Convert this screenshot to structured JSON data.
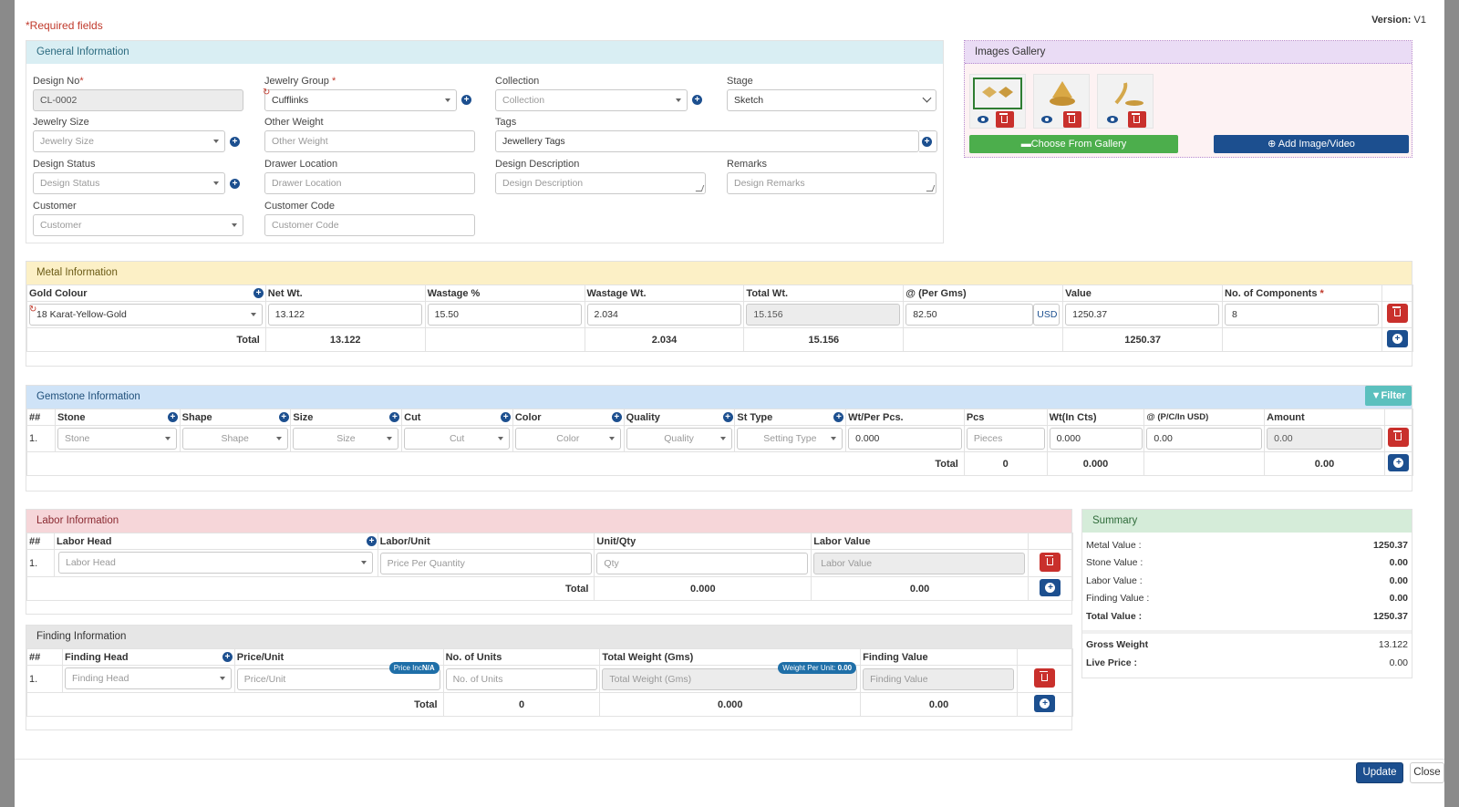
{
  "header": {
    "required_note": "*Required fields",
    "version_label": "Version:",
    "version_value": "V1"
  },
  "general": {
    "title": "General Information",
    "design_no_label": "Design No",
    "design_no_value": "CL-0002",
    "jewelry_group_label": "Jewelry Group",
    "jewelry_group_value": "Cufflinks",
    "collection_label": "Collection",
    "collection_placeholder": "Collection",
    "stage_label": "Stage",
    "stage_value": "Sketch",
    "jewelry_size_label": "Jewelry Size",
    "jewelry_size_placeholder": "Jewelry Size",
    "other_weight_label": "Other Weight",
    "other_weight_placeholder": "Other Weight",
    "tags_label": "Tags",
    "tags_value": "Jewellery Tags",
    "design_status_label": "Design Status",
    "design_status_placeholder": "Design Status",
    "drawer_location_label": "Drawer Location",
    "drawer_location_placeholder": "Drawer Location",
    "design_description_label": "Design Description",
    "design_description_placeholder": "Design Description",
    "remarks_label": "Remarks",
    "remarks_placeholder": "Design Remarks",
    "customer_label": "Customer",
    "customer_placeholder": "Customer",
    "customer_code_label": "Customer Code",
    "customer_code_placeholder": "Customer Code"
  },
  "gallery": {
    "title": "Images Gallery",
    "choose_label": "Choose From Gallery",
    "add_label": "Add Image/Video"
  },
  "metal": {
    "title": "Metal Information",
    "headers": [
      "Gold Colour",
      "Net Wt.",
      "Wastage %",
      "Wastage Wt.",
      "Total Wt.",
      "@ (Per Gms)",
      "Value",
      "No. of Components"
    ],
    "row": {
      "gold_colour": "18 Karat-Yellow-Gold",
      "net_wt": "13.122",
      "wastage_pct": "15.50",
      "wastage_wt": "2.034",
      "total_wt": "15.156",
      "per_gms": "82.50",
      "currency": "USD",
      "value": "1250.37",
      "components": "8"
    },
    "total": {
      "label": "Total",
      "net_wt": "13.122",
      "wastage_wt": "2.034",
      "total_wt": "15.156",
      "value": "1250.37"
    }
  },
  "gemstone": {
    "title": "Gemstone Information",
    "filter_label": "Filter",
    "headers": [
      "##",
      "Stone",
      "Shape",
      "Size",
      "Cut",
      "Color",
      "Quality",
      "St Type",
      "Wt/Per Pcs.",
      "Pcs",
      "Wt(In Cts)",
      "@ (P/C/In USD)",
      "Amount"
    ],
    "row": {
      "num": "1.",
      "stone": "Stone",
      "shape": "Shape",
      "size": "Size",
      "cut": "Cut",
      "color": "Color",
      "quality": "Quality",
      "st_type": "Setting Type",
      "wt_per_pcs": "0.000",
      "pcs": "Pieces",
      "wt_cts": "0.000",
      "rate": "0.00",
      "amount": "0.00"
    },
    "total": {
      "label": "Total",
      "pcs": "0",
      "wt_cts": "0.000",
      "amount": "0.00"
    }
  },
  "labor": {
    "title": "Labor Information",
    "headers": [
      "##",
      "Labor Head",
      "Labor/Unit",
      "Unit/Qty",
      "Labor Value"
    ],
    "row": {
      "num": "1.",
      "head": "Labor Head",
      "unit": "Price Per Quantity",
      "qty": "Qty",
      "value": "Labor Value"
    },
    "total": {
      "label": "Total",
      "qty": "0.000",
      "value": "0.00"
    }
  },
  "finding": {
    "title": "Finding Information",
    "headers": [
      "##",
      "Finding Head",
      "Price/Unit",
      "No. of Units",
      "Total Weight (Gms)",
      "Finding Value"
    ],
    "row": {
      "num": "1.",
      "head": "Finding Head",
      "price": "Price/Unit",
      "units": "No. of Units",
      "weight": "Total Weight (Gms)",
      "value": "Finding Value"
    },
    "price_pill_label": "Price Inc",
    "price_pill_value": "N/A",
    "weight_pill_label": "Weight Per Unit:",
    "weight_pill_value": "0.00",
    "total": {
      "label": "Total",
      "units": "0",
      "weight": "0.000",
      "value": "0.00"
    }
  },
  "summary": {
    "title": "Summary",
    "metal_label": "Metal Value :",
    "metal_value": "1250.37",
    "stone_label": "Stone Value :",
    "stone_value": "0.00",
    "labor_label": "Labor Value :",
    "labor_value": "0.00",
    "finding_label": "Finding Value :",
    "finding_value": "0.00",
    "total_label": "Total Value :",
    "total_value": "1250.37",
    "gross_label": "Gross Weight",
    "gross_value": "13.122",
    "live_label": "Live Price :",
    "live_value": "0.00"
  },
  "footer": {
    "update_label": "Update",
    "close_label": "Close"
  },
  "colors": {
    "primary": "#1c4f8f",
    "danger": "#c9302c",
    "success": "#4cae4c",
    "filter": "#5bc0be"
  }
}
